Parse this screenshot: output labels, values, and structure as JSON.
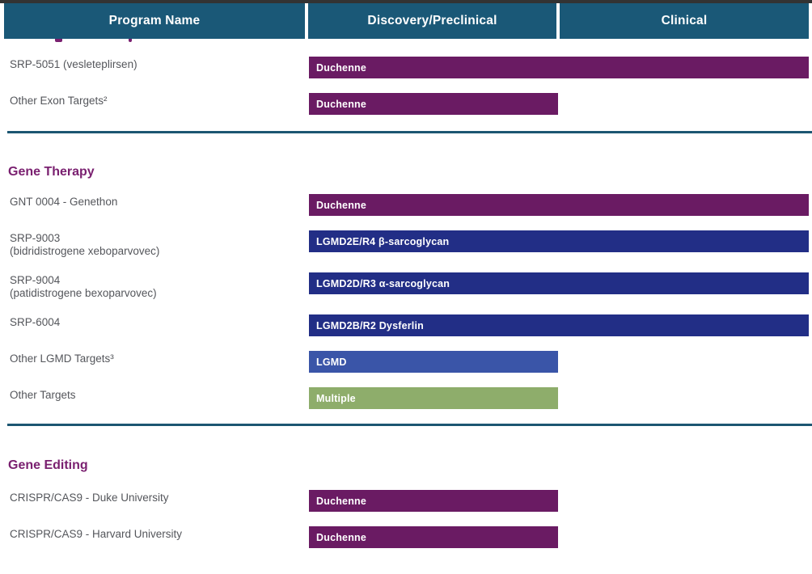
{
  "colors": {
    "header_bg": "#1A5877",
    "top_strip": "#333333",
    "divider": "#1C5672",
    "section_title": "#7A2070",
    "label_text": "#54565B",
    "purple": "#6A1B63",
    "navy": "#222E86",
    "blue": "#3A55A8",
    "green": "#8EAD6B"
  },
  "header": {
    "columns": [
      {
        "label": "Program Name"
      },
      {
        "label": "Discovery/Preclinical"
      },
      {
        "label": "Clinical"
      }
    ]
  },
  "sections": [
    {
      "title": "",
      "rows": [
        {
          "label": "SRP-5051 (vesleteplirsen)",
          "sublabel": "",
          "bar": {
            "text": "Duchenne",
            "color": "purple",
            "span": "clinical"
          }
        },
        {
          "label": "Other Exon Targets²",
          "sublabel": "",
          "bar": {
            "text": "Duchenne",
            "color": "purple",
            "span": "discovery"
          }
        }
      ]
    },
    {
      "title": "Gene Therapy",
      "rows": [
        {
          "label": "GNT 0004 - Genethon",
          "sublabel": "",
          "bar": {
            "text": "Duchenne",
            "color": "purple",
            "span": "clinical"
          }
        },
        {
          "label": "SRP-9003",
          "sublabel": "(bidridistrogene xeboparvovec)",
          "bar": {
            "text": "LGMD2E/R4 β-sarcoglycan",
            "color": "navy",
            "span": "clinical"
          }
        },
        {
          "label": "SRP-9004",
          "sublabel": "(patidistrogene bexoparvovec)",
          "bar": {
            "text": "LGMD2D/R3 α-sarcoglycan",
            "color": "navy",
            "span": "clinical"
          }
        },
        {
          "label": "SRP-6004",
          "sublabel": "",
          "bar": {
            "text": "LGMD2B/R2 Dysferlin",
            "color": "navy",
            "span": "clinical"
          }
        },
        {
          "label": "Other LGMD Targets³",
          "sublabel": "",
          "bar": {
            "text": "LGMD",
            "color": "blue",
            "span": "discovery"
          }
        },
        {
          "label": "Other Targets",
          "sublabel": "",
          "bar": {
            "text": "Multiple",
            "color": "green",
            "span": "discovery"
          }
        }
      ]
    },
    {
      "title": "Gene Editing",
      "rows": [
        {
          "label": "CRISPR/CAS9 - Duke University",
          "sublabel": "",
          "bar": {
            "text": "Duchenne",
            "color": "purple",
            "span": "discovery"
          }
        },
        {
          "label": "CRISPR/CAS9 - Harvard University",
          "sublabel": "",
          "bar": {
            "text": "Duchenne",
            "color": "purple",
            "span": "discovery"
          }
        }
      ]
    }
  ],
  "chart_data": {
    "type": "table",
    "title": "Pipeline programs by development stage",
    "columns": [
      "Program Name",
      "Discovery/Preclinical",
      "Clinical"
    ],
    "rows": [
      {
        "section": "",
        "program": "SRP-5051 (vesleteplirsen)",
        "indication": "Duchenne",
        "stage_reached": "Clinical",
        "bar_color": "#6A1B63"
      },
      {
        "section": "",
        "program": "Other Exon Targets²",
        "indication": "Duchenne",
        "stage_reached": "Discovery/Preclinical",
        "bar_color": "#6A1B63"
      },
      {
        "section": "Gene Therapy",
        "program": "GNT 0004 - Genethon",
        "indication": "Duchenne",
        "stage_reached": "Clinical",
        "bar_color": "#6A1B63"
      },
      {
        "section": "Gene Therapy",
        "program": "SRP-9003 (bidridistrogene xeboparvovec)",
        "indication": "LGMD2E/R4 β-sarcoglycan",
        "stage_reached": "Clinical",
        "bar_color": "#222E86"
      },
      {
        "section": "Gene Therapy",
        "program": "SRP-9004 (patidistrogene bexoparvovec)",
        "indication": "LGMD2D/R3 α-sarcoglycan",
        "stage_reached": "Clinical",
        "bar_color": "#222E86"
      },
      {
        "section": "Gene Therapy",
        "program": "SRP-6004",
        "indication": "LGMD2B/R2 Dysferlin",
        "stage_reached": "Clinical",
        "bar_color": "#222E86"
      },
      {
        "section": "Gene Therapy",
        "program": "Other LGMD Targets³",
        "indication": "LGMD",
        "stage_reached": "Discovery/Preclinical",
        "bar_color": "#3A55A8"
      },
      {
        "section": "Gene Therapy",
        "program": "Other Targets",
        "indication": "Multiple",
        "stage_reached": "Discovery/Preclinical",
        "bar_color": "#8EAD6B"
      },
      {
        "section": "Gene Editing",
        "program": "CRISPR/CAS9 - Duke University",
        "indication": "Duchenne",
        "stage_reached": "Discovery/Preclinical",
        "bar_color": "#6A1B63"
      },
      {
        "section": "Gene Editing",
        "program": "CRISPR/CAS9 - Harvard University",
        "indication": "Duchenne",
        "stage_reached": "Discovery/Preclinical",
        "bar_color": "#6A1B63"
      }
    ],
    "legend_position": "none",
    "grid": false
  }
}
